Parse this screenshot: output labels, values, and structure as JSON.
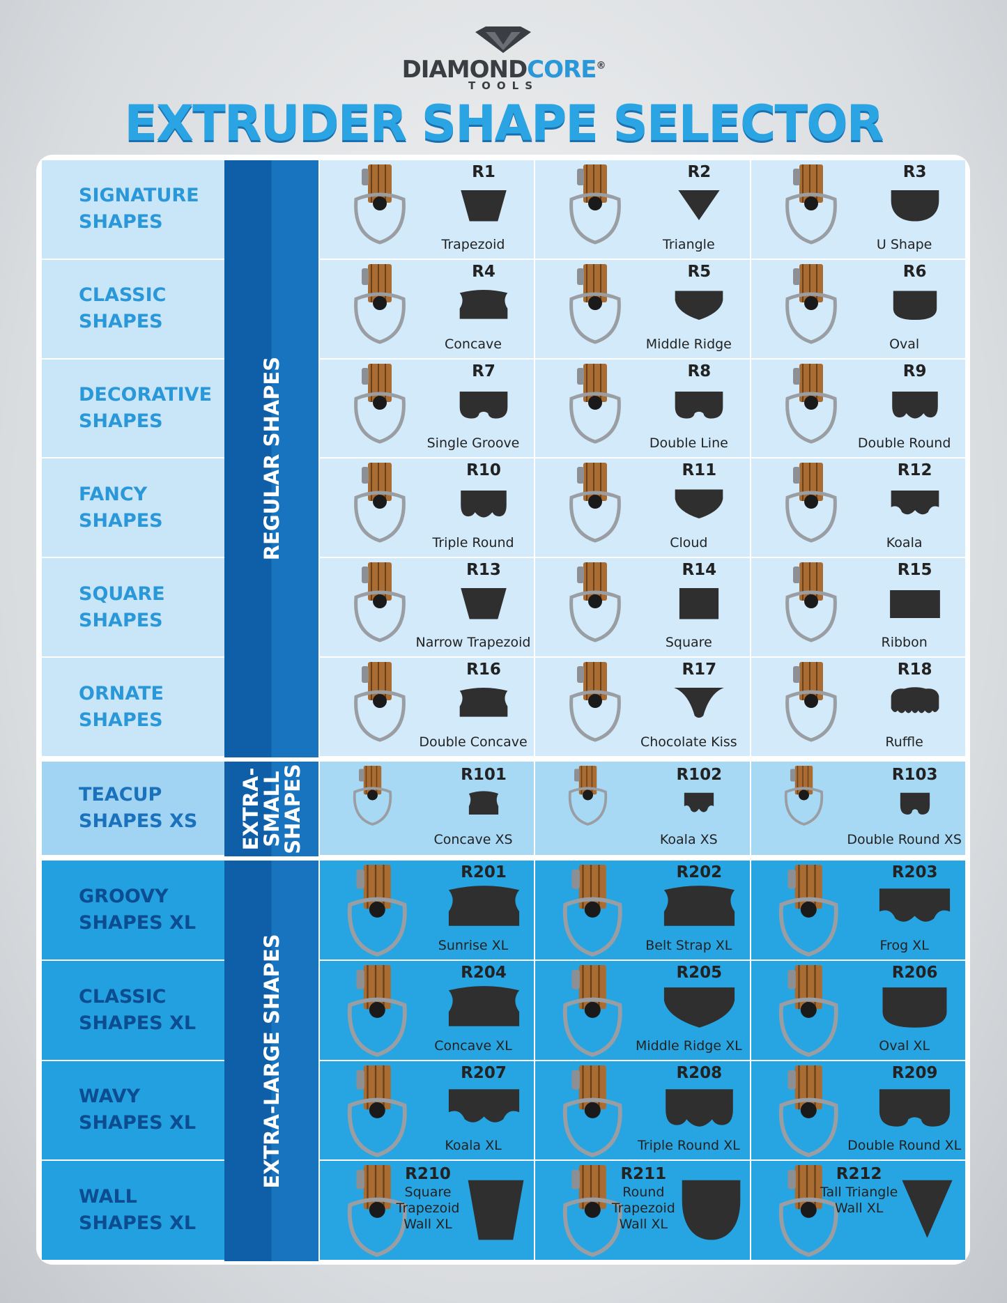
{
  "header": {
    "brand_a": "DIAMOND",
    "brand_b": "CORE",
    "registered": "®",
    "brand_sub": "TOOLS",
    "title": "EXTRUDER SHAPE SELECTOR"
  },
  "sections": [
    {
      "band": [
        "REGULAR SHAPES"
      ],
      "rows": [
        {
          "label": [
            "SIGNATURE",
            "SHAPES"
          ],
          "cells": [
            {
              "code": "R1",
              "name": "Trapezoid"
            },
            {
              "code": "R2",
              "name": "Triangle"
            },
            {
              "code": "R3",
              "name": "U Shape"
            }
          ]
        },
        {
          "label": [
            "CLASSIC",
            "SHAPES"
          ],
          "cells": [
            {
              "code": "R4",
              "name": "Concave"
            },
            {
              "code": "R5",
              "name": "Middle Ridge"
            },
            {
              "code": "R6",
              "name": "Oval"
            }
          ]
        },
        {
          "label": [
            "DECORATIVE",
            "SHAPES"
          ],
          "cells": [
            {
              "code": "R7",
              "name": "Single Groove"
            },
            {
              "code": "R8",
              "name": "Double Line"
            },
            {
              "code": "R9",
              "name": "Double Round"
            }
          ]
        },
        {
          "label": [
            "FANCY",
            "SHAPES"
          ],
          "cells": [
            {
              "code": "R10",
              "name": "Triple Round"
            },
            {
              "code": "R11",
              "name": "Cloud"
            },
            {
              "code": "R12",
              "name": "Koala"
            }
          ]
        },
        {
          "label": [
            "SQUARE",
            "SHAPES"
          ],
          "cells": [
            {
              "code": "R13",
              "name": "Narrow Trapezoid"
            },
            {
              "code": "R14",
              "name": "Square"
            },
            {
              "code": "R15",
              "name": "Ribbon"
            }
          ]
        },
        {
          "label": [
            "ORNATE",
            "SHAPES"
          ],
          "cells": [
            {
              "code": "R16",
              "name": "Double Concave"
            },
            {
              "code": "R17",
              "name": "Chocolate Kiss"
            },
            {
              "code": "R18",
              "name": "Ruffle"
            }
          ]
        }
      ]
    },
    {
      "band": [
        "EXTRA-",
        "SMALL",
        "SHAPES"
      ],
      "rows": [
        {
          "label": [
            "TEACUP",
            "SHAPES XS"
          ],
          "cells": [
            {
              "code": "R101",
              "name": "Concave XS"
            },
            {
              "code": "R102",
              "name": "Koala XS"
            },
            {
              "code": "R103",
              "name": "Double Round XS"
            }
          ]
        }
      ]
    },
    {
      "band": [
        "EXTRA-LARGE SHAPES"
      ],
      "rows": [
        {
          "label": [
            "GROOVY",
            "SHAPES XL"
          ],
          "cells": [
            {
              "code": "R201",
              "name": "Sunrise XL"
            },
            {
              "code": "R202",
              "name": "Belt Strap XL"
            },
            {
              "code": "R203",
              "name": "Frog XL"
            }
          ]
        },
        {
          "label": [
            "CLASSIC",
            "SHAPES XL"
          ],
          "cells": [
            {
              "code": "R204",
              "name": "Concave XL"
            },
            {
              "code": "R205",
              "name": "Middle Ridge XL"
            },
            {
              "code": "R206",
              "name": "Oval XL"
            }
          ]
        },
        {
          "label": [
            "WAVY",
            "SHAPES XL"
          ],
          "cells": [
            {
              "code": "R207",
              "name": "Koala XL"
            },
            {
              "code": "R208",
              "name": "Triple Round XL"
            },
            {
              "code": "R209",
              "name": "Double Round XL"
            }
          ]
        },
        {
          "label": [
            "WALL",
            "SHAPES XL"
          ],
          "cells": [
            {
              "code": "R210",
              "name": "Square Trapezoid Wall XL"
            },
            {
              "code": "R211",
              "name": "Round Trapezoid Wall XL"
            },
            {
              "code": "R212",
              "name": "Tall Triangle Wall XL"
            }
          ]
        }
      ]
    }
  ]
}
